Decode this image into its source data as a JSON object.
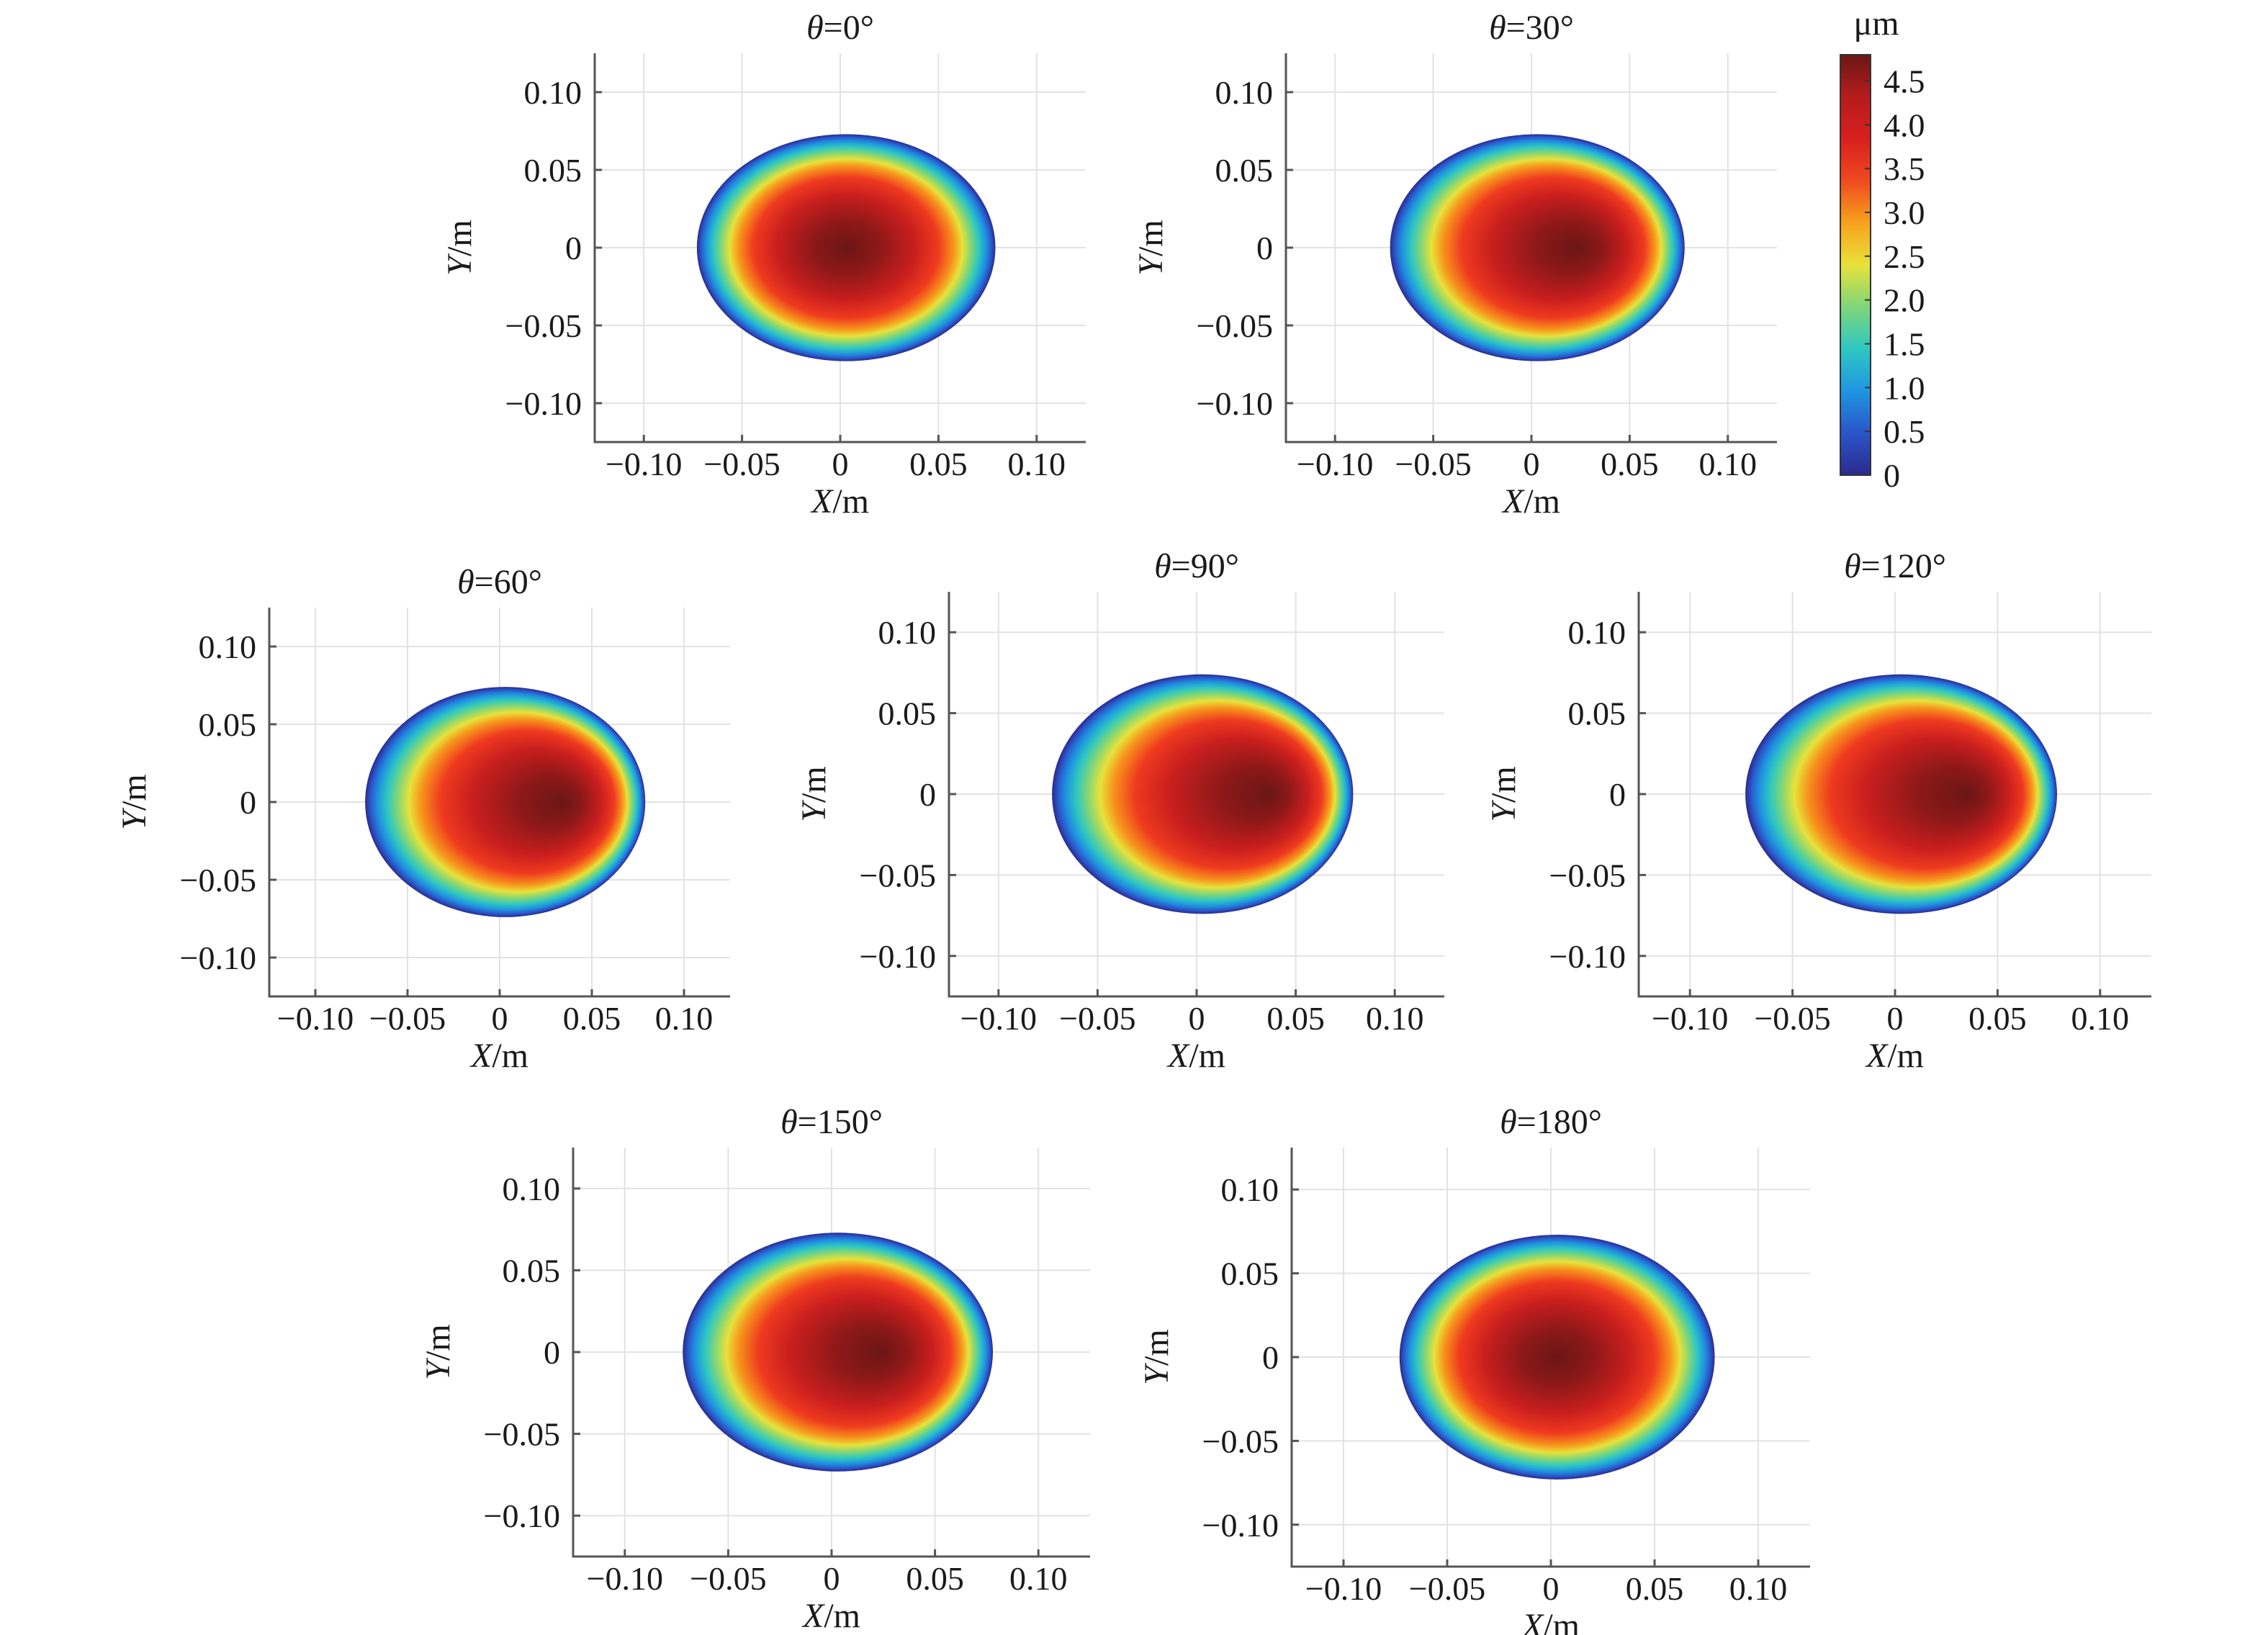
{
  "chart_data": {
    "type": "heatmap",
    "description_unit": "μm",
    "colorbar": {
      "unit": "μm",
      "range": [
        0,
        4.8
      ],
      "ticks": [
        "4.5",
        "4.0",
        "3.5",
        "3.0",
        "2.5",
        "2.0",
        "1.5",
        "1.0",
        "0.5",
        "0"
      ],
      "tick_values": [
        4.5,
        4.0,
        3.5,
        3.0,
        2.5,
        2.0,
        1.5,
        1.0,
        0.5,
        0
      ],
      "colormap": [
        "#2b2a8c",
        "#2a55c8",
        "#1f95e0",
        "#2ec7c2",
        "#7ed67a",
        "#e8e23a",
        "#f7a21c",
        "#ef4a1f",
        "#d81f1f",
        "#b51c1c",
        "#6b1616"
      ]
    },
    "xlim": [
      -0.125,
      0.125
    ],
    "ylim": [
      -0.125,
      0.125
    ],
    "xticks": [
      "−0.10",
      "−0.05",
      "0",
      "0.05",
      "0.10"
    ],
    "xtick_values": [
      -0.1,
      -0.05,
      0,
      0.05,
      0.1
    ],
    "yticks": [
      "0.10",
      "0.05",
      "0",
      "−0.05",
      "−0.10"
    ],
    "ytick_values": [
      0.1,
      0.05,
      0,
      -0.05,
      -0.1
    ],
    "xlabel_var": "X",
    "xlabel_unit": "/m",
    "ylabel_var": "Y",
    "ylabel_unit": "/m",
    "panels": [
      {
        "theta_var": "θ",
        "theta_val": "=0°",
        "shift": 0.0,
        "rx": 0.076,
        "ry": 0.073
      },
      {
        "theta_var": "θ",
        "theta_val": "=30°",
        "shift": 0.28,
        "rx": 0.075,
        "ry": 0.073
      },
      {
        "theta_var": "θ",
        "theta_val": "=60°",
        "shift": 0.42,
        "rx": 0.076,
        "ry": 0.074
      },
      {
        "theta_var": "θ",
        "theta_val": "=90°",
        "shift": 0.45,
        "rx": 0.076,
        "ry": 0.074
      },
      {
        "theta_var": "θ",
        "theta_val": "=120°",
        "shift": 0.43,
        "rx": 0.076,
        "ry": 0.074
      },
      {
        "theta_var": "θ",
        "theta_val": "=150°",
        "shift": 0.28,
        "rx": 0.075,
        "ry": 0.073
      },
      {
        "theta_var": "θ",
        "theta_val": "=180°",
        "shift": 0.0,
        "rx": 0.076,
        "ry": 0.073
      }
    ]
  }
}
